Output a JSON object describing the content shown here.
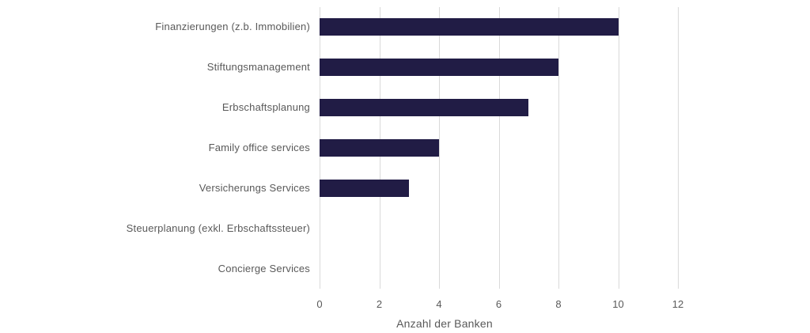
{
  "chart_data": {
    "type": "bar",
    "orientation": "horizontal",
    "title": "",
    "xlabel": "Anzahl der Banken",
    "ylabel": "",
    "categories": [
      "Finanzierungen (z.b. Immobilien)",
      "Stiftungsmanagement",
      "Erbschaftsplanung",
      "Family office services",
      "Versicherungs Services",
      "Steuerplanung (exkl. Erbschaftssteuer)",
      "Concierge Services"
    ],
    "values": [
      10,
      8,
      7,
      4,
      3,
      0,
      0
    ],
    "xlim": [
      0,
      12
    ],
    "x_ticks": [
      0,
      2,
      4,
      6,
      8,
      10,
      12
    ],
    "grid": "vertical",
    "legend": "none",
    "colors": {
      "bar": "#211C45",
      "gridline": "#D9D9D9",
      "text": "#595959",
      "background": "#FFFFFF"
    }
  }
}
